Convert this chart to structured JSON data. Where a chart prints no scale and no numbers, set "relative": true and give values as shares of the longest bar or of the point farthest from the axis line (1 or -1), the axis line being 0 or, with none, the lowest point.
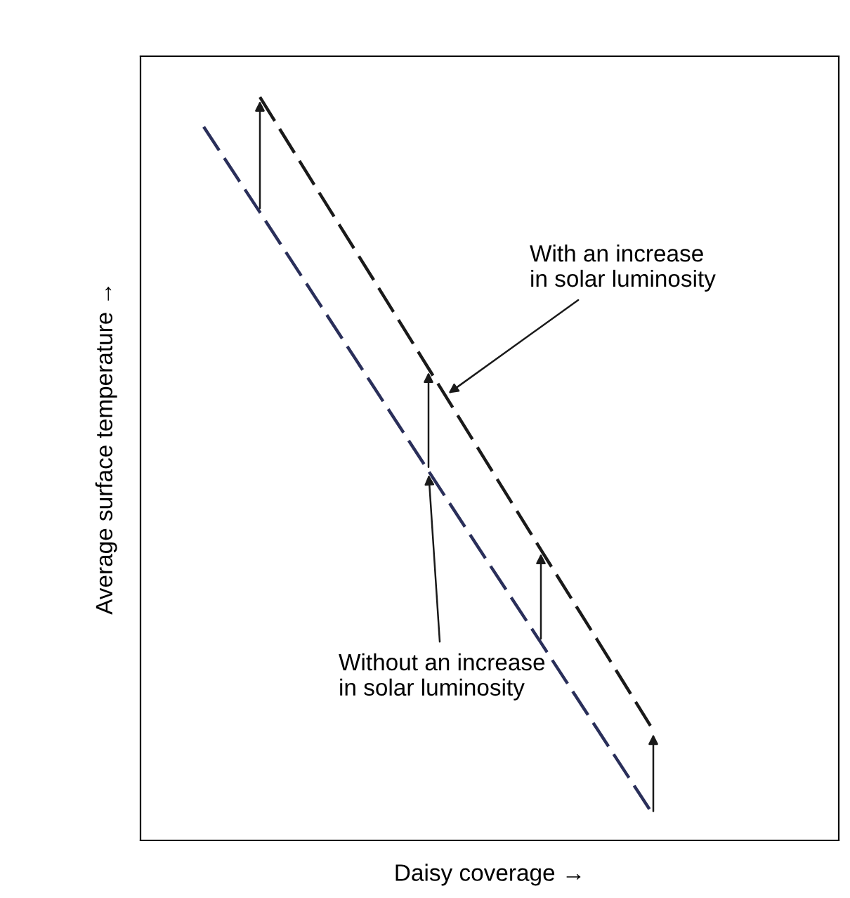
{
  "chart_data": {
    "type": "line",
    "relative": true,
    "xlabel": "Daisy coverage →",
    "ylabel": "Average surface temperature →",
    "categories": [
      null,
      null,
      null,
      null,
      null,
      null,
      null,
      null,
      null
    ],
    "series": [
      {
        "color": "#1a1a1a",
        "line_style": "dashed",
        "values": [
          null,
          1,
          0.878,
          0.757,
          0.635,
          0.513,
          0.391,
          0.27,
          0.148
        ]
      },
      {
        "color": "#2a2f5a",
        "line_style": "dashed",
        "values": [
          0.96,
          0.845,
          0.729,
          0.613,
          0.497,
          0.381,
          0.266,
          0.15,
          0.034
        ]
      }
    ],
    "annotations": [
      "With an increase\nin solar luminosity",
      "Without an increase\nin solar luminosity"
    ],
    "legend": false,
    "marker": "none"
  }
}
